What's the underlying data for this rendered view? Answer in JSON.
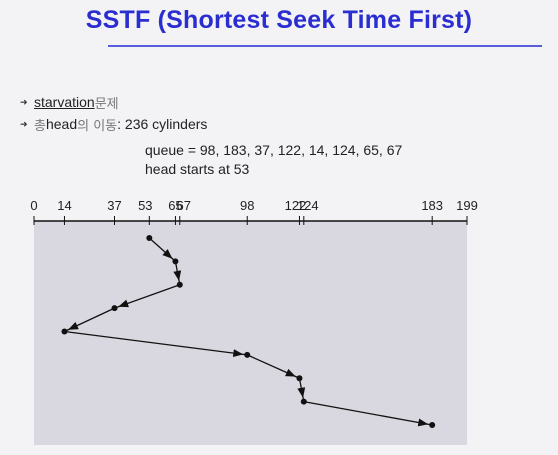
{
  "title": "SSTF (Shortest Seek Time First)",
  "bullets": [
    {
      "term": "starvation",
      "rest": " 문제"
    },
    {
      "prefix": "총 ",
      "term": "head",
      "middle": "의 이동",
      "rest": ": 236 cylinders"
    }
  ],
  "queue_text": "queue = 98, 183, 37, 122, 14, 124, 65, 67",
  "head_start_text": "head starts at 53",
  "chart_data": {
    "type": "line",
    "x_ticks": [
      0,
      14,
      37,
      53,
      65,
      67,
      98,
      122,
      124,
      183,
      199
    ],
    "xlim": [
      0,
      199
    ],
    "head_path": [
      53,
      65,
      67,
      37,
      14,
      98,
      122,
      124,
      183
    ]
  },
  "colors": {
    "title": "#2a2ed0",
    "plot_bg": "#d9d8e0",
    "line": "#111111"
  }
}
